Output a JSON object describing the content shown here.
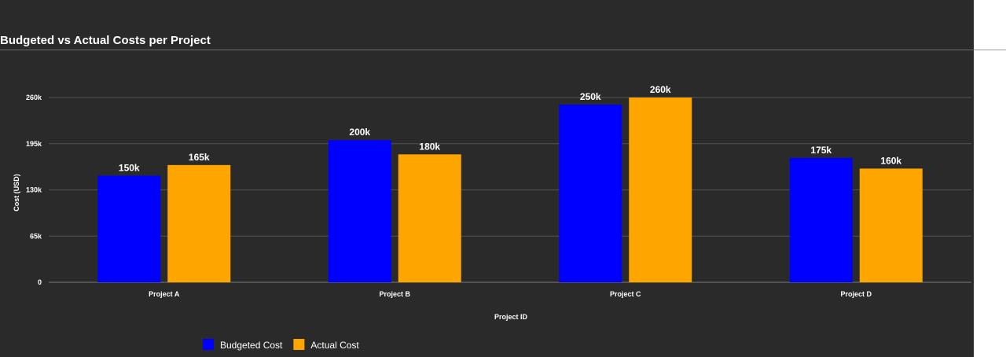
{
  "chart_data": {
    "type": "bar",
    "title": "Budgeted vs Actual Costs per Project",
    "xlabel": "Project ID",
    "ylabel": "Cost (USD)",
    "categories": [
      "Project A",
      "Project B",
      "Project C",
      "Project D"
    ],
    "series": [
      {
        "name": "Budgeted Cost",
        "color": "#0000ff",
        "values": [
          150000,
          200000,
          250000,
          175000
        ],
        "labels": [
          "150k",
          "200k",
          "250k",
          "175k"
        ]
      },
      {
        "name": "Actual Cost",
        "color": "#ffa500",
        "values": [
          165000,
          180000,
          260000,
          160000
        ],
        "labels": [
          "165k",
          "180k",
          "260k",
          "160k"
        ]
      }
    ],
    "ylim": [
      0,
      260000
    ],
    "yticks": [
      0,
      65000,
      130000,
      195000,
      260000
    ],
    "ytick_labels": [
      "0",
      "65k",
      "130k",
      "195k",
      "260k"
    ],
    "grid": true,
    "legend": "bottom-left"
  }
}
